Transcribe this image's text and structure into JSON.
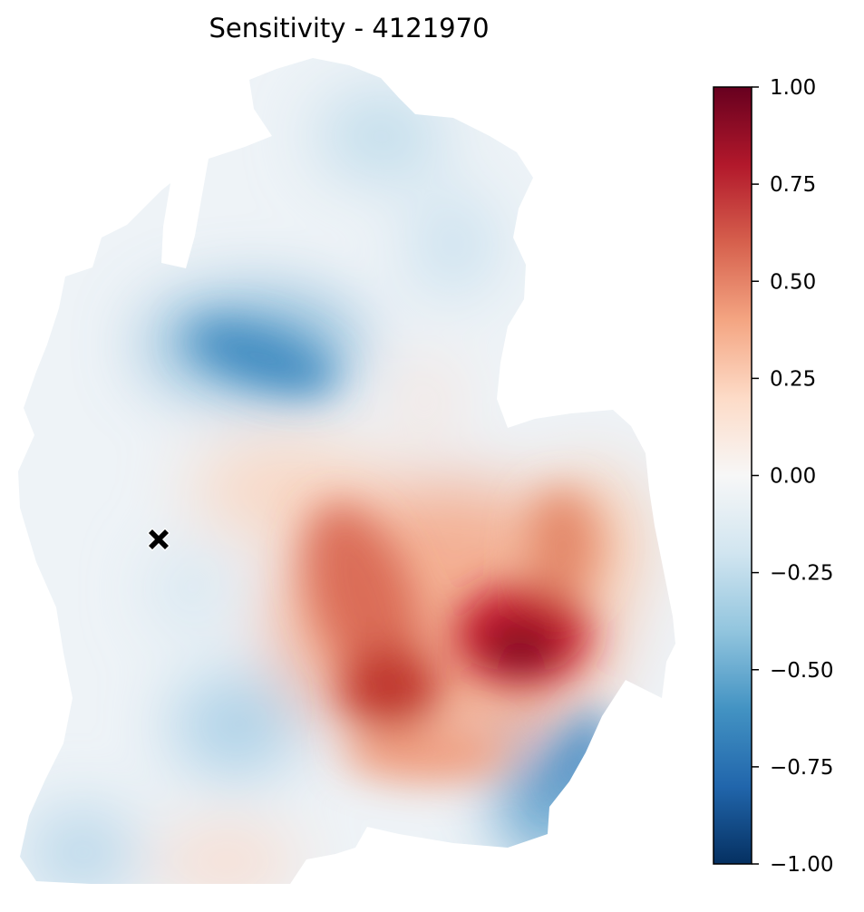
{
  "title": "Sensitivity - 4121970",
  "marker": {
    "symbol": "✖",
    "icon": "x-marker-icon",
    "color": "#000000"
  },
  "colorbar": {
    "min": -1.0,
    "max": 1.0,
    "colormap": "RdBu_r",
    "stops": [
      "#053061",
      "#2166ac",
      "#4393c3",
      "#92c5de",
      "#d1e5f0",
      "#f7f7f7",
      "#fddbc7",
      "#f4a582",
      "#d6604d",
      "#b2182b",
      "#67001f"
    ],
    "ticks": [
      {
        "value": 1.0,
        "label": "1.00"
      },
      {
        "value": 0.75,
        "label": "0.75"
      },
      {
        "value": 0.5,
        "label": "0.50"
      },
      {
        "value": 0.25,
        "label": "0.25"
      },
      {
        "value": 0.0,
        "label": "0.00"
      },
      {
        "value": -0.25,
        "label": "−0.25"
      },
      {
        "value": -0.5,
        "label": "−0.50"
      },
      {
        "value": -0.75,
        "label": "−0.75"
      },
      {
        "value": -1.0,
        "label": "−1.00"
      }
    ]
  }
}
